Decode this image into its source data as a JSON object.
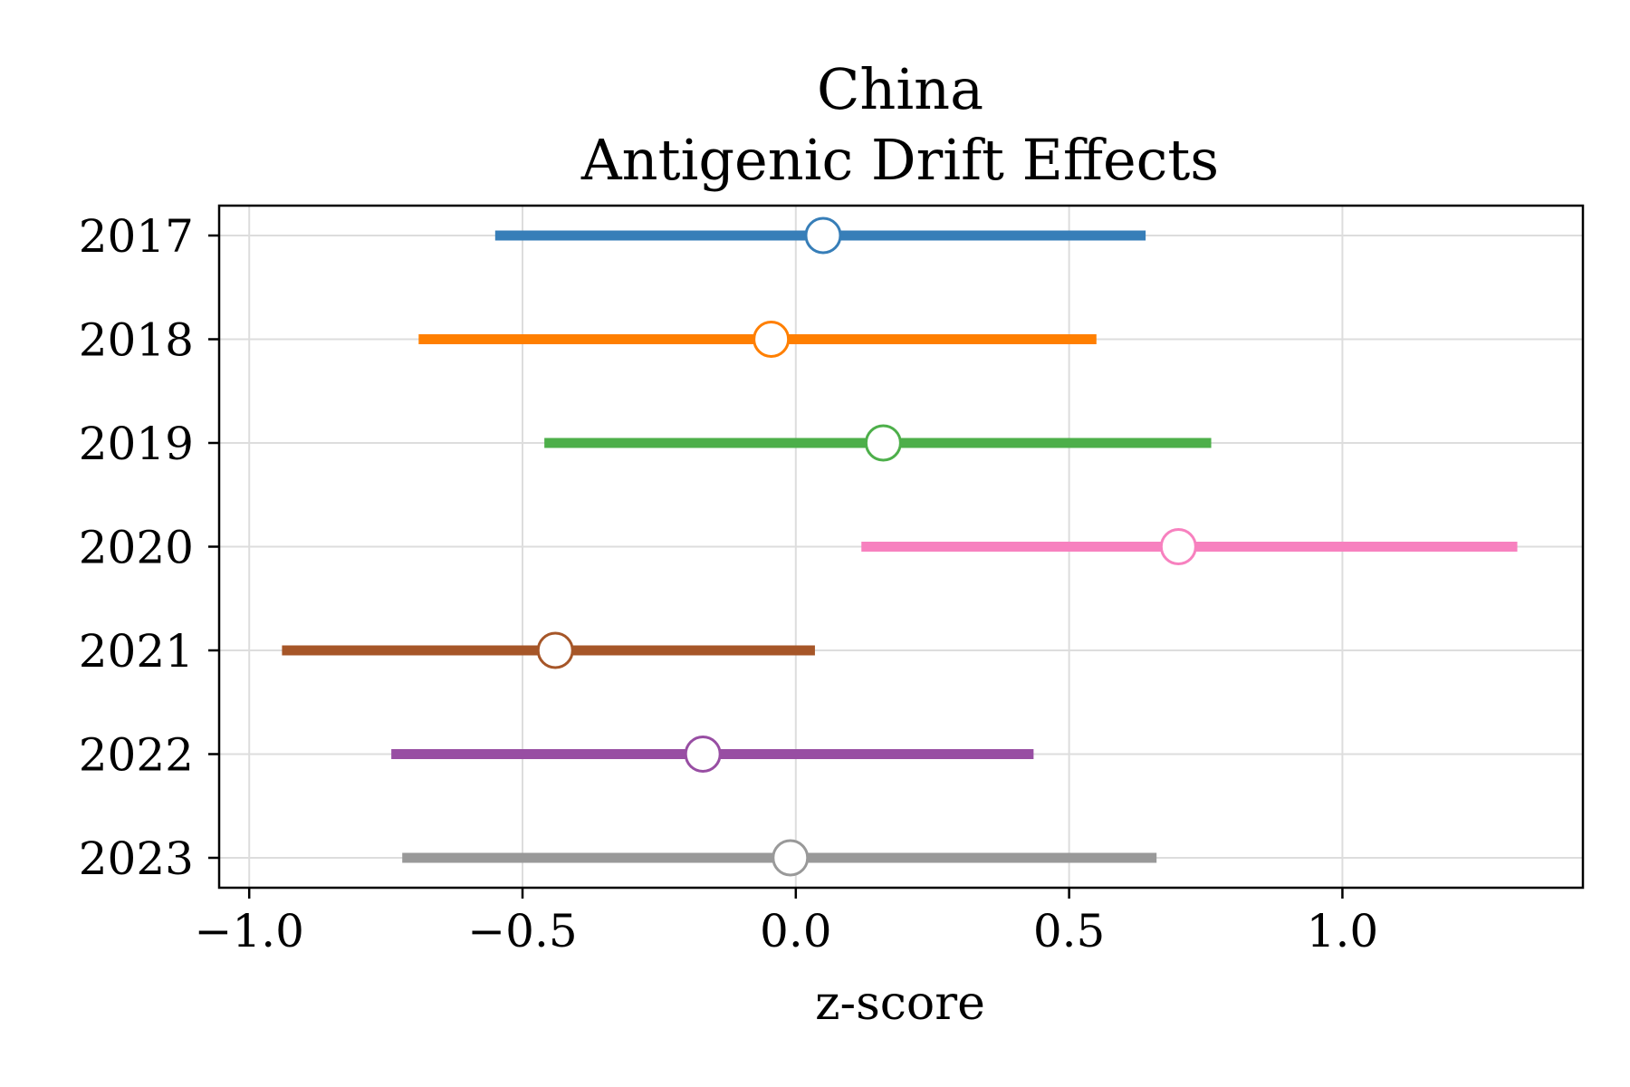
{
  "chart_data": {
    "type": "forest",
    "title_line1": "China",
    "title_line2": "Antigenic Drift Effects",
    "xlabel": "z-score",
    "ylabel": "",
    "xlim": [
      -1.055,
      1.44
    ],
    "xticks": [
      -1.0,
      -0.5,
      0.0,
      0.5,
      1.0
    ],
    "xtick_labels": [
      "−1.0",
      "−0.5",
      "0.0",
      "0.5",
      "1.0"
    ],
    "grid": true,
    "categories": [
      "2017",
      "2018",
      "2019",
      "2020",
      "2021",
      "2022",
      "2023"
    ],
    "points": [
      {
        "category": "2017",
        "estimate": 0.05,
        "lower": -0.55,
        "upper": 0.64,
        "color": "#377eb8"
      },
      {
        "category": "2018",
        "estimate": -0.045,
        "lower": -0.69,
        "upper": 0.55,
        "color": "#ff7f00"
      },
      {
        "category": "2019",
        "estimate": 0.16,
        "lower": -0.46,
        "upper": 0.76,
        "color": "#4daf4a"
      },
      {
        "category": "2020",
        "estimate": 0.7,
        "lower": 0.12,
        "upper": 1.32,
        "color": "#f781bf"
      },
      {
        "category": "2021",
        "estimate": -0.44,
        "lower": -0.94,
        "upper": 0.035,
        "color": "#a65628"
      },
      {
        "category": "2022",
        "estimate": -0.17,
        "lower": -0.74,
        "upper": 0.435,
        "color": "#984ea3"
      },
      {
        "category": "2023",
        "estimate": -0.01,
        "lower": -0.72,
        "upper": 0.66,
        "color": "#999999"
      }
    ]
  }
}
